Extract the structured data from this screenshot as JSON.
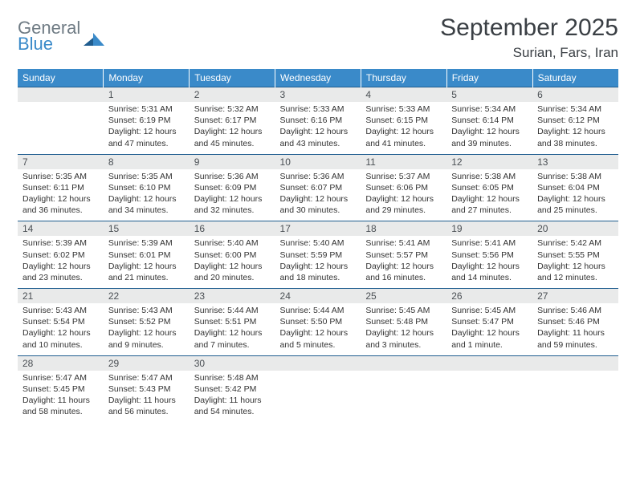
{
  "logo": {
    "line1": "General",
    "line2": "Blue",
    "text_color_1": "#6f7b84",
    "text_color_2": "#3a8ac9",
    "mark_color": "#1f5d8f"
  },
  "title": "September 2025",
  "location": "Surian, Fars, Iran",
  "colors": {
    "header_bg": "#3a8ac9",
    "header_text": "#ffffff",
    "daynum_bg": "#e9eaea",
    "row_border": "#1f5d8f",
    "body_text": "#333333"
  },
  "weekdays": [
    "Sunday",
    "Monday",
    "Tuesday",
    "Wednesday",
    "Thursday",
    "Friday",
    "Saturday"
  ],
  "weeks": [
    [
      {
        "empty": true
      },
      {
        "day": "1",
        "sunrise": "Sunrise: 5:31 AM",
        "sunset": "Sunset: 6:19 PM",
        "daylight": "Daylight: 12 hours and 47 minutes."
      },
      {
        "day": "2",
        "sunrise": "Sunrise: 5:32 AM",
        "sunset": "Sunset: 6:17 PM",
        "daylight": "Daylight: 12 hours and 45 minutes."
      },
      {
        "day": "3",
        "sunrise": "Sunrise: 5:33 AM",
        "sunset": "Sunset: 6:16 PM",
        "daylight": "Daylight: 12 hours and 43 minutes."
      },
      {
        "day": "4",
        "sunrise": "Sunrise: 5:33 AM",
        "sunset": "Sunset: 6:15 PM",
        "daylight": "Daylight: 12 hours and 41 minutes."
      },
      {
        "day": "5",
        "sunrise": "Sunrise: 5:34 AM",
        "sunset": "Sunset: 6:14 PM",
        "daylight": "Daylight: 12 hours and 39 minutes."
      },
      {
        "day": "6",
        "sunrise": "Sunrise: 5:34 AM",
        "sunset": "Sunset: 6:12 PM",
        "daylight": "Daylight: 12 hours and 38 minutes."
      }
    ],
    [
      {
        "day": "7",
        "sunrise": "Sunrise: 5:35 AM",
        "sunset": "Sunset: 6:11 PM",
        "daylight": "Daylight: 12 hours and 36 minutes."
      },
      {
        "day": "8",
        "sunrise": "Sunrise: 5:35 AM",
        "sunset": "Sunset: 6:10 PM",
        "daylight": "Daylight: 12 hours and 34 minutes."
      },
      {
        "day": "9",
        "sunrise": "Sunrise: 5:36 AM",
        "sunset": "Sunset: 6:09 PM",
        "daylight": "Daylight: 12 hours and 32 minutes."
      },
      {
        "day": "10",
        "sunrise": "Sunrise: 5:36 AM",
        "sunset": "Sunset: 6:07 PM",
        "daylight": "Daylight: 12 hours and 30 minutes."
      },
      {
        "day": "11",
        "sunrise": "Sunrise: 5:37 AM",
        "sunset": "Sunset: 6:06 PM",
        "daylight": "Daylight: 12 hours and 29 minutes."
      },
      {
        "day": "12",
        "sunrise": "Sunrise: 5:38 AM",
        "sunset": "Sunset: 6:05 PM",
        "daylight": "Daylight: 12 hours and 27 minutes."
      },
      {
        "day": "13",
        "sunrise": "Sunrise: 5:38 AM",
        "sunset": "Sunset: 6:04 PM",
        "daylight": "Daylight: 12 hours and 25 minutes."
      }
    ],
    [
      {
        "day": "14",
        "sunrise": "Sunrise: 5:39 AM",
        "sunset": "Sunset: 6:02 PM",
        "daylight": "Daylight: 12 hours and 23 minutes."
      },
      {
        "day": "15",
        "sunrise": "Sunrise: 5:39 AM",
        "sunset": "Sunset: 6:01 PM",
        "daylight": "Daylight: 12 hours and 21 minutes."
      },
      {
        "day": "16",
        "sunrise": "Sunrise: 5:40 AM",
        "sunset": "Sunset: 6:00 PM",
        "daylight": "Daylight: 12 hours and 20 minutes."
      },
      {
        "day": "17",
        "sunrise": "Sunrise: 5:40 AM",
        "sunset": "Sunset: 5:59 PM",
        "daylight": "Daylight: 12 hours and 18 minutes."
      },
      {
        "day": "18",
        "sunrise": "Sunrise: 5:41 AM",
        "sunset": "Sunset: 5:57 PM",
        "daylight": "Daylight: 12 hours and 16 minutes."
      },
      {
        "day": "19",
        "sunrise": "Sunrise: 5:41 AM",
        "sunset": "Sunset: 5:56 PM",
        "daylight": "Daylight: 12 hours and 14 minutes."
      },
      {
        "day": "20",
        "sunrise": "Sunrise: 5:42 AM",
        "sunset": "Sunset: 5:55 PM",
        "daylight": "Daylight: 12 hours and 12 minutes."
      }
    ],
    [
      {
        "day": "21",
        "sunrise": "Sunrise: 5:43 AM",
        "sunset": "Sunset: 5:54 PM",
        "daylight": "Daylight: 12 hours and 10 minutes."
      },
      {
        "day": "22",
        "sunrise": "Sunrise: 5:43 AM",
        "sunset": "Sunset: 5:52 PM",
        "daylight": "Daylight: 12 hours and 9 minutes."
      },
      {
        "day": "23",
        "sunrise": "Sunrise: 5:44 AM",
        "sunset": "Sunset: 5:51 PM",
        "daylight": "Daylight: 12 hours and 7 minutes."
      },
      {
        "day": "24",
        "sunrise": "Sunrise: 5:44 AM",
        "sunset": "Sunset: 5:50 PM",
        "daylight": "Daylight: 12 hours and 5 minutes."
      },
      {
        "day": "25",
        "sunrise": "Sunrise: 5:45 AM",
        "sunset": "Sunset: 5:48 PM",
        "daylight": "Daylight: 12 hours and 3 minutes."
      },
      {
        "day": "26",
        "sunrise": "Sunrise: 5:45 AM",
        "sunset": "Sunset: 5:47 PM",
        "daylight": "Daylight: 12 hours and 1 minute."
      },
      {
        "day": "27",
        "sunrise": "Sunrise: 5:46 AM",
        "sunset": "Sunset: 5:46 PM",
        "daylight": "Daylight: 11 hours and 59 minutes."
      }
    ],
    [
      {
        "day": "28",
        "sunrise": "Sunrise: 5:47 AM",
        "sunset": "Sunset: 5:45 PM",
        "daylight": "Daylight: 11 hours and 58 minutes."
      },
      {
        "day": "29",
        "sunrise": "Sunrise: 5:47 AM",
        "sunset": "Sunset: 5:43 PM",
        "daylight": "Daylight: 11 hours and 56 minutes."
      },
      {
        "day": "30",
        "sunrise": "Sunrise: 5:48 AM",
        "sunset": "Sunset: 5:42 PM",
        "daylight": "Daylight: 11 hours and 54 minutes."
      },
      {
        "empty": true
      },
      {
        "empty": true
      },
      {
        "empty": true
      },
      {
        "empty": true
      }
    ]
  ]
}
